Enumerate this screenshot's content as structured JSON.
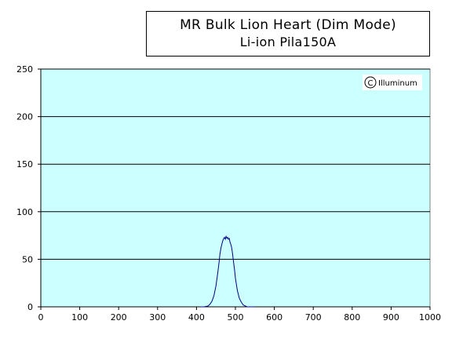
{
  "chart_data": {
    "type": "line",
    "title": "MR Bulk Lion Heart (Dim Mode)",
    "subtitle": "Li-ion Pila150A",
    "xlabel": "",
    "ylabel": "",
    "xlim": [
      0,
      1000
    ],
    "ylim": [
      0,
      250
    ],
    "xticks": [
      "0",
      "100",
      "200",
      "300",
      "400",
      "500",
      "600",
      "700",
      "800",
      "900",
      "1000"
    ],
    "yticks": [
      "0",
      "50",
      "100",
      "150",
      "200",
      "250"
    ],
    "grid": "horizontal",
    "plot_background": "#ccffff",
    "series_color": "#000080",
    "watermark": "Illuminum",
    "series": [
      {
        "x": [
          410,
          420,
          430,
          435,
          440,
          445,
          450,
          455,
          458,
          460,
          463,
          466,
          468,
          470,
          472,
          474,
          476,
          478,
          480,
          482,
          484,
          486,
          488,
          490,
          492,
          495,
          498,
          500,
          505,
          510,
          515,
          520,
          525,
          530,
          540,
          550
        ],
        "y": [
          0,
          0,
          1,
          3,
          6,
          12,
          22,
          37,
          47,
          55,
          62,
          67,
          70,
          72,
          73,
          71,
          74,
          72,
          73,
          71,
          72,
          68,
          66,
          63,
          58,
          48,
          38,
          30,
          17,
          9,
          5,
          2,
          1,
          0,
          0,
          0
        ]
      }
    ]
  }
}
